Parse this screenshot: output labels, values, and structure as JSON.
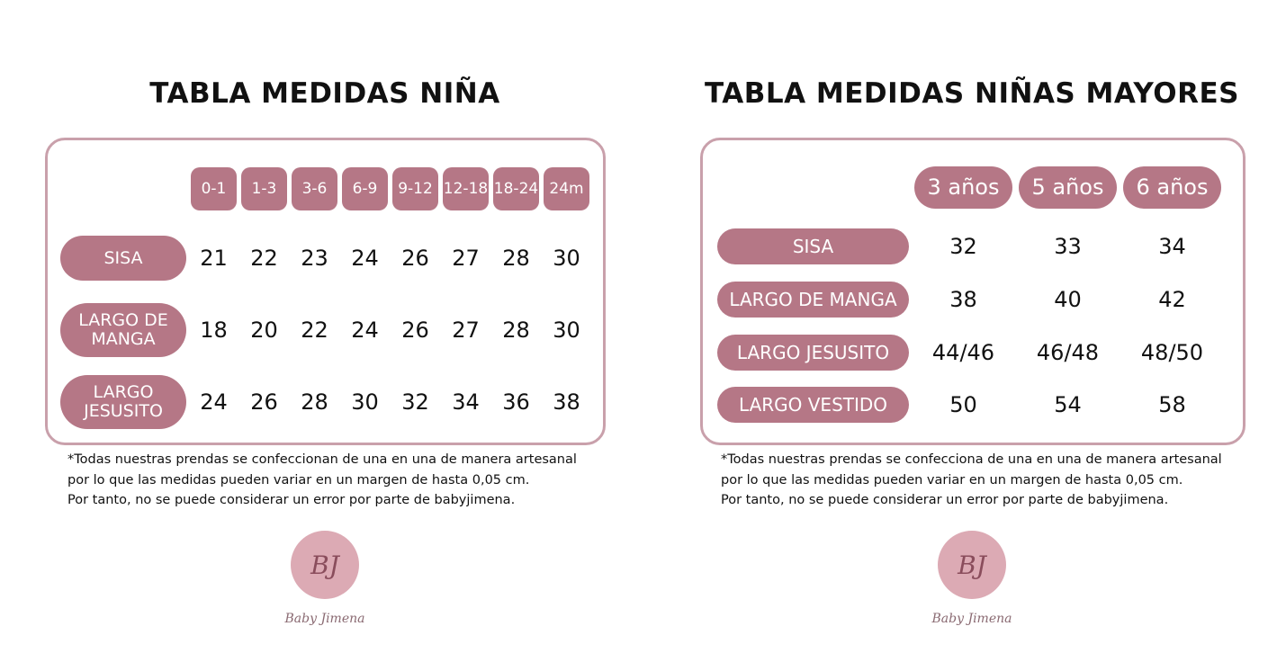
{
  "tables": [
    {
      "title": "TABLA MEDIDAS NIÑA",
      "columns": [
        "0-1",
        "1-3",
        "3-6",
        "6-9",
        "9-12",
        "12-18",
        "18-24",
        "24m"
      ],
      "rows": [
        {
          "label": "SISA",
          "values": [
            21,
            22,
            23,
            24,
            26,
            27,
            28,
            30
          ]
        },
        {
          "label": "LARGO DE MANGA",
          "values": [
            18,
            20,
            22,
            24,
            26,
            27,
            28,
            30
          ]
        },
        {
          "label": "LARGO JESUSITO",
          "values": [
            24,
            26,
            28,
            30,
            32,
            34,
            36,
            38
          ]
        }
      ],
      "note": [
        "*Todas nuestras prendas se confeccionan de una en una de manera artesanal",
        "por lo que las medidas pueden variar en un margen de hasta 0,05 cm.",
        "Por tanto, no se puede considerar un error por parte de babyjimena."
      ],
      "logo": {
        "monogram": "BJ",
        "name": "Baby Jimena"
      }
    },
    {
      "title": "TABLA MEDIDAS NIÑAS MAYORES",
      "columns": [
        "3 años",
        "5 años",
        "6 años"
      ],
      "rows": [
        {
          "label": "SISA",
          "values": [
            32,
            33,
            34
          ]
        },
        {
          "label": "LARGO DE MANGA",
          "values": [
            38,
            40,
            42
          ]
        },
        {
          "label": "LARGO JESUSITO",
          "values": [
            "44/46",
            "46/48",
            "48/50"
          ]
        },
        {
          "label": "LARGO VESTIDO",
          "values": [
            50,
            54,
            58
          ]
        }
      ],
      "note": [
        "*Todas nuestras prendas se confecciona de una en una de manera artesanal",
        "por lo que las medidas pueden variar en un margen de hasta 0,05 cm.",
        "Por tanto, no se puede considerar un error por parte de babyjimena."
      ],
      "logo": {
        "monogram": "BJ",
        "name": "Baby Jimena"
      }
    }
  ]
}
